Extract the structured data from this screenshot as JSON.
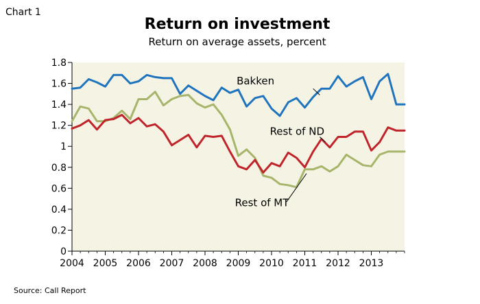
{
  "header": {
    "chart_number": "Chart 1"
  },
  "footer": {
    "source": "Source: Call Report"
  },
  "chart_data": {
    "type": "line",
    "title": "Return on investment",
    "subtitle": "Return on average assets, percent",
    "xlabel": "",
    "ylabel": "",
    "xlim": [
      2004,
      2014
    ],
    "ylim": [
      0,
      1.8
    ],
    "x_ticks": [
      "2004",
      "2005",
      "2006",
      "2007",
      "2008",
      "2009",
      "2010",
      "2011",
      "2012",
      "2013"
    ],
    "y_ticks": [
      "0",
      "0.2",
      "0.4",
      "0.6",
      "0.8",
      "1",
      "1.2",
      "1.4",
      "1.6",
      "1.8"
    ],
    "grid": false,
    "background": "#f5f3e4",
    "x": [
      2004.0,
      2004.25,
      2004.5,
      2004.75,
      2005.0,
      2005.25,
      2005.5,
      2005.75,
      2006.0,
      2006.25,
      2006.5,
      2006.75,
      2007.0,
      2007.25,
      2007.5,
      2007.75,
      2008.0,
      2008.25,
      2008.5,
      2008.75,
      2009.0,
      2009.25,
      2009.5,
      2009.75,
      2010.0,
      2010.25,
      2010.5,
      2010.75,
      2011.0,
      2011.25,
      2011.5,
      2011.75,
      2012.0,
      2012.25,
      2012.5,
      2012.75,
      2013.0,
      2013.25,
      2013.5,
      2013.75,
      2014.0
    ],
    "series": [
      {
        "name": "Bakken",
        "color": "#1f74bd",
        "values": [
          1.55,
          1.56,
          1.64,
          1.61,
          1.57,
          1.68,
          1.68,
          1.6,
          1.62,
          1.68,
          1.66,
          1.65,
          1.65,
          1.5,
          1.58,
          1.53,
          1.48,
          1.44,
          1.56,
          1.51,
          1.54,
          1.38,
          1.46,
          1.48,
          1.36,
          1.29,
          1.42,
          1.46,
          1.37,
          1.47,
          1.55,
          1.55,
          1.67,
          1.57,
          1.62,
          1.66,
          1.45,
          1.62,
          1.69,
          1.4,
          1.4
        ]
      },
      {
        "name": "Rest of ND",
        "color": "#c0242b",
        "values": [
          1.17,
          1.2,
          1.25,
          1.16,
          1.25,
          1.26,
          1.3,
          1.22,
          1.27,
          1.19,
          1.21,
          1.14,
          1.01,
          1.06,
          1.11,
          0.99,
          1.1,
          1.09,
          1.1,
          0.95,
          0.81,
          0.78,
          0.87,
          0.75,
          0.84,
          0.81,
          0.94,
          0.89,
          0.8,
          0.95,
          1.07,
          0.99,
          1.09,
          1.09,
          1.14,
          1.14,
          0.96,
          1.04,
          1.18,
          1.15,
          1.15
        ]
      },
      {
        "name": "Rest of MT",
        "color": "#a6b56a",
        "values": [
          1.24,
          1.38,
          1.36,
          1.24,
          1.24,
          1.27,
          1.34,
          1.26,
          1.45,
          1.45,
          1.52,
          1.39,
          1.45,
          1.48,
          1.49,
          1.41,
          1.37,
          1.4,
          1.3,
          1.16,
          0.91,
          0.97,
          0.89,
          0.72,
          0.7,
          0.64,
          0.63,
          0.61,
          0.78,
          0.78,
          0.81,
          0.76,
          0.81,
          0.92,
          0.87,
          0.82,
          0.81,
          0.92,
          0.95,
          0.95,
          0.95
        ]
      }
    ],
    "annotations": [
      {
        "text": "Bakken",
        "series": "Bakken"
      },
      {
        "text": "Rest of ND",
        "series": "Rest of ND"
      },
      {
        "text": "Rest of MT",
        "series": "Rest of MT"
      }
    ]
  }
}
